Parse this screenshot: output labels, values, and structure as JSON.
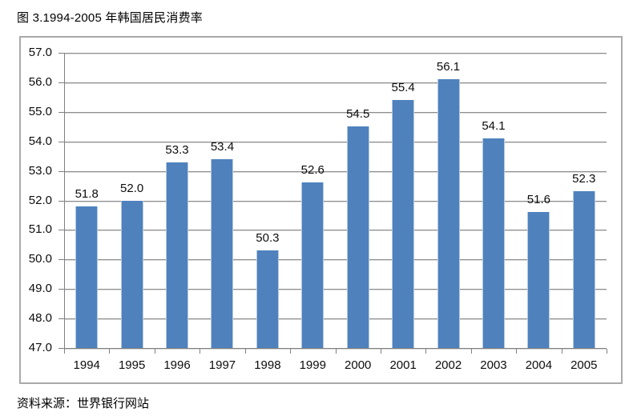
{
  "title": "图 3.1994-2005 年韩国居民消费率",
  "source": "资料来源：世界银行网站",
  "colors": {
    "bar": "#4f81bd",
    "bar_edge": "#b4c9e2",
    "gridline": "#8e8e8e",
    "axis": "#808080",
    "frame_border": "#a9a9a9",
    "text": "#0d0d0d",
    "background": "#ffffff"
  },
  "chart_data": {
    "type": "bar",
    "title": "图 3.1994-2005 年韩国居民消费率",
    "xlabel": "",
    "ylabel": "",
    "categories": [
      "1994",
      "1995",
      "1996",
      "1997",
      "1998",
      "1999",
      "2000",
      "2001",
      "2002",
      "2003",
      "2004",
      "2005"
    ],
    "values": [
      51.8,
      52.0,
      53.3,
      53.4,
      50.3,
      52.6,
      54.5,
      55.4,
      56.1,
      54.1,
      51.6,
      52.3
    ],
    "value_labels": [
      "51.8",
      "52.0",
      "53.3",
      "53.4",
      "50.3",
      "52.6",
      "54.5",
      "55.4",
      "56.1",
      "54.1",
      "51.6",
      "52.3"
    ],
    "ylim": [
      47.0,
      57.0
    ],
    "ytick_step": 1.0,
    "ytick_labels": [
      "57.0",
      "56.0",
      "55.0",
      "54.0",
      "53.0",
      "52.0",
      "51.0",
      "50.0",
      "49.0",
      "48.0",
      "47.0"
    ],
    "grid": true,
    "legend_position": "none",
    "source_note": "资料来源：世界银行网站"
  }
}
